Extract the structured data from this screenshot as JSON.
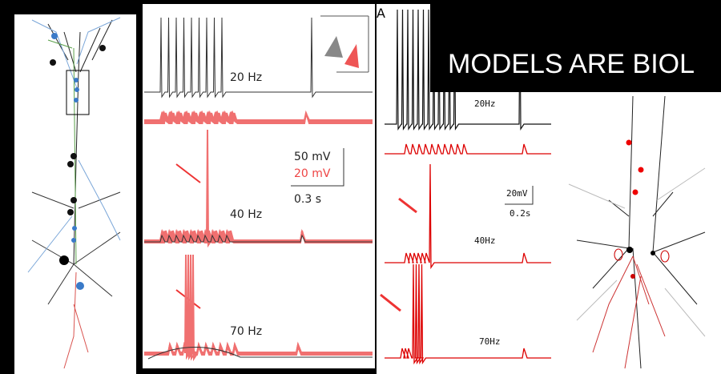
{
  "banner": {
    "title": "MODELS ARE BIOL"
  },
  "panel_label": "A",
  "figure_b": {
    "rates": [
      "20 Hz",
      "40 Hz",
      "70 Hz"
    ],
    "scale_bar": {
      "voltage_black": "50 mV",
      "voltage_red": "20 mV",
      "time": "0.3 s"
    }
  },
  "figure_a": {
    "rates": [
      "20Hz",
      "40Hz",
      "70Hz"
    ],
    "scale_bar": {
      "voltage": "20mV",
      "time": "0.2s"
    }
  }
}
